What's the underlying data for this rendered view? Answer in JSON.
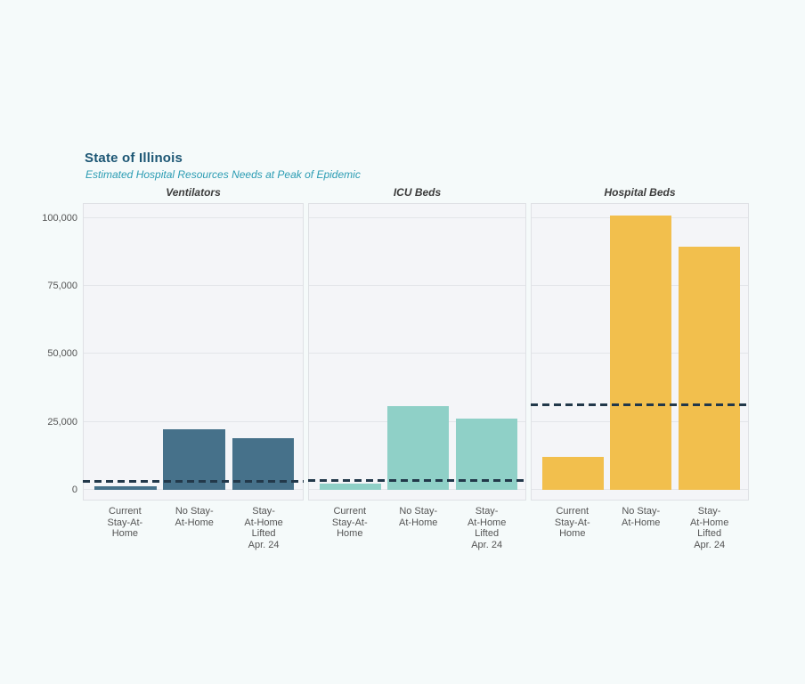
{
  "page": {
    "background_color": "#f5fafa"
  },
  "chart_data": {
    "type": "bar",
    "title": "State of Illinois",
    "subtitle": "Estimated Hospital Resources Needs at Peak of Epidemic",
    "title_color": "#1c5674",
    "subtitle_color": "#2b9cb3",
    "categories": [
      "Current Stay-At-Home",
      "No Stay-At-Home",
      "Stay-At-Home Lifted Apr. 24"
    ],
    "category_tick_lines": [
      [
        "Current",
        "Stay-At-",
        "Home"
      ],
      [
        "No Stay-",
        "At-Home"
      ],
      [
        "Stay-",
        "At-Home",
        "Lifted",
        "Apr. 24"
      ]
    ],
    "y_axis": {
      "label": "",
      "ticks": [
        0,
        25000,
        50000,
        75000,
        100000
      ],
      "tick_labels": [
        "0",
        "25,000",
        "50,000",
        "75,000",
        "100,000"
      ],
      "range": [
        0,
        105400
      ],
      "grid": true
    },
    "legend": false,
    "capacity_line_style": "dashed",
    "capacity_line_color": "#22384a",
    "panels": [
      {
        "name": "Ventilators",
        "bar_color": "#46718a",
        "values": [
          1400,
          22400,
          19100
        ],
        "capacity_line": 3200
      },
      {
        "name": "ICU Beds",
        "bar_color": "#8fd0c7",
        "values": [
          2200,
          30800,
          26300
        ],
        "capacity_line": 3400
      },
      {
        "name": "Hospital Beds",
        "bar_color": "#f2bf4d",
        "values": [
          12100,
          101000,
          89300
        ],
        "capacity_line": 31300
      }
    ]
  }
}
